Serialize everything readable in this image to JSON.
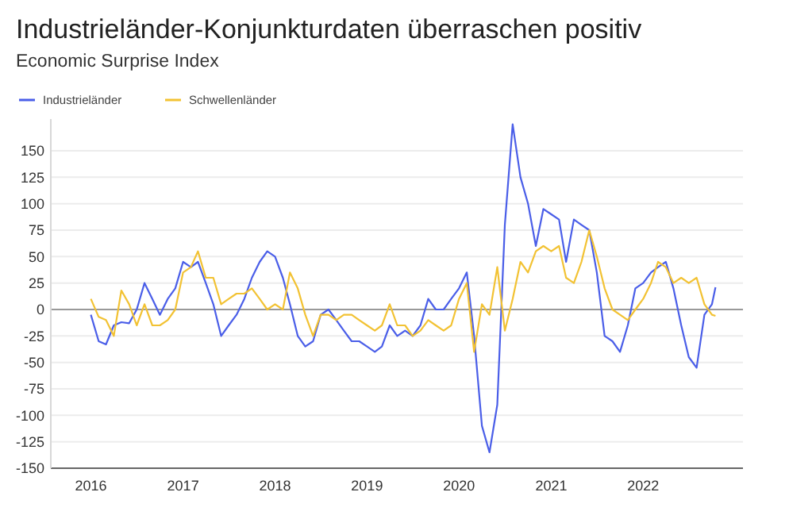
{
  "chart_data": {
    "type": "line",
    "title": "Industrieländer-Konjunkturdaten überraschen positiv",
    "subtitle": "Economic Surprise Index",
    "x": [
      "2016-01",
      "2016-02",
      "2016-03",
      "2016-04",
      "2016-05",
      "2016-06",
      "2016-07",
      "2016-08",
      "2016-09",
      "2016-10",
      "2016-11",
      "2016-12",
      "2017-01",
      "2017-02",
      "2017-03",
      "2017-04",
      "2017-05",
      "2017-06",
      "2017-07",
      "2017-08",
      "2017-09",
      "2017-10",
      "2017-11",
      "2017-12",
      "2018-01",
      "2018-02",
      "2018-03",
      "2018-04",
      "2018-05",
      "2018-06",
      "2018-07",
      "2018-08",
      "2018-09",
      "2018-10",
      "2018-11",
      "2018-12",
      "2019-01",
      "2019-02",
      "2019-03",
      "2019-04",
      "2019-05",
      "2019-06",
      "2019-07",
      "2019-08",
      "2019-09",
      "2019-10",
      "2019-11",
      "2019-12",
      "2020-01",
      "2020-02",
      "2020-03",
      "2020-04",
      "2020-05",
      "2020-06",
      "2020-07",
      "2020-08",
      "2020-09",
      "2020-10",
      "2020-11",
      "2020-12",
      "2021-01",
      "2021-02",
      "2021-03",
      "2021-04",
      "2021-05",
      "2021-06",
      "2021-07",
      "2021-08",
      "2021-09",
      "2021-10",
      "2021-11",
      "2021-12",
      "2022-01",
      "2022-02",
      "2022-03",
      "2022-04",
      "2022-05",
      "2022-06",
      "2022-07",
      "2022-08",
      "2022-09",
      "2022-10",
      "2022-10-15"
    ],
    "series": [
      {
        "name": "Industrieländer",
        "color": "#4a5ee8",
        "values": [
          -5,
          -30,
          -33,
          -15,
          -12,
          -13,
          0,
          25,
          10,
          -5,
          10,
          20,
          45,
          40,
          45,
          25,
          5,
          -25,
          -15,
          -5,
          10,
          30,
          45,
          55,
          50,
          30,
          5,
          -25,
          -35,
          -30,
          -5,
          0,
          -10,
          -20,
          -30,
          -30,
          -35,
          -40,
          -35,
          -15,
          -25,
          -20,
          -25,
          -15,
          10,
          0,
          0,
          10,
          20,
          35,
          -25,
          -110,
          -135,
          -90,
          80,
          175,
          125,
          100,
          60,
          95,
          90,
          85,
          45,
          85,
          80,
          75,
          35,
          -25,
          -30,
          -40,
          -15,
          20,
          25,
          35,
          40,
          45,
          20,
          -15,
          -45,
          -55,
          -5,
          5,
          21
        ]
      },
      {
        "name": "Schwellenländer",
        "color": "#f2c233",
        "values": [
          10,
          -7,
          -10,
          -25,
          18,
          5,
          -15,
          5,
          -15,
          -15,
          -10,
          0,
          35,
          40,
          55,
          30,
          30,
          5,
          10,
          15,
          15,
          20,
          10,
          0,
          5,
          0,
          35,
          20,
          -5,
          -25,
          -5,
          -5,
          -10,
          -5,
          -5,
          -10,
          -15,
          -20,
          -15,
          5,
          -15,
          -15,
          -25,
          -20,
          -10,
          -15,
          -20,
          -15,
          10,
          25,
          -40,
          5,
          -5,
          40,
          -20,
          10,
          45,
          35,
          55,
          60,
          55,
          60,
          30,
          25,
          45,
          75,
          50,
          20,
          0,
          -5,
          -10,
          0,
          10,
          25,
          45,
          40,
          25,
          30,
          25,
          30,
          5,
          -5,
          -6
        ]
      }
    ],
    "xlim": [
      "2015-07-26",
      "2023-02-01"
    ],
    "xticks": [
      "2016",
      "2017",
      "2018",
      "2019",
      "2020",
      "2021",
      "2022"
    ],
    "ylim": [
      -150,
      180
    ],
    "yticks": [
      -150,
      -125,
      -100,
      -75,
      -50,
      -25,
      0,
      25,
      50,
      75,
      100,
      125,
      150
    ],
    "ref_lines": [
      {
        "axis": "y",
        "value": 0,
        "color": "#999999"
      }
    ],
    "grid": "y",
    "legend": "top left",
    "line_style": "solid",
    "marker": "none"
  }
}
